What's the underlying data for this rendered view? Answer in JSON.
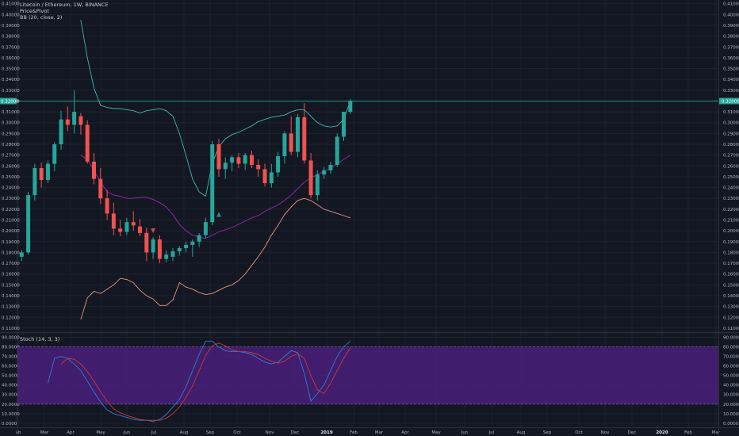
{
  "legend": {
    "symbol": "Litecoin / Ethereum, 1W, BINANCE",
    "indicator1": "Price&Pivot",
    "indicator2": "BB (20, close, 2)"
  },
  "stoch_legend": "Stoch (14, 3, 3)",
  "colors": {
    "background": "#131722",
    "grid": "#1e222d",
    "up": "#26a69a",
    "down": "#ef5350",
    "upper_band": "#3fb8af",
    "mid_band": "#9c27b0",
    "lower_band": "#e8947b",
    "stoch_k": "#2e7dd8",
    "stoch_d": "#c73a3a",
    "stoch_zone": "#4a1f7a",
    "price_line": "#26a69a"
  },
  "chart_data": [
    {
      "type": "candlestick",
      "title": "Litecoin / Ethereum, 1W, BINANCE",
      "ylim": [
        0.11,
        0.41
      ],
      "price_ticks": [
        "0.41000",
        "0.40000",
        "0.39000",
        "0.38000",
        "0.37000",
        "0.36000",
        "0.35000",
        "0.34000",
        "0.33000",
        "0.32000",
        "0.31000",
        "0.30000",
        "0.29000",
        "0.28000",
        "0.27000",
        "0.26000",
        "0.25000",
        "0.24000",
        "0.23000",
        "0.22000",
        "0.21000",
        "0.20000",
        "0.19000",
        "0.18000",
        "0.17000",
        "0.16000",
        "0.15000",
        "0.14000",
        "0.13000",
        "0.12000",
        "0.11000"
      ],
      "current_price": "0.32000",
      "candles": [
        [
          0.176,
          0.182,
          0.172,
          0.18
        ],
        [
          0.18,
          0.236,
          0.178,
          0.233
        ],
        [
          0.233,
          0.262,
          0.228,
          0.258
        ],
        [
          0.258,
          0.263,
          0.24,
          0.247
        ],
        [
          0.247,
          0.265,
          0.244,
          0.262
        ],
        [
          0.262,
          0.282,
          0.255,
          0.28
        ],
        [
          0.28,
          0.311,
          0.275,
          0.303
        ],
        [
          0.303,
          0.315,
          0.292,
          0.298
        ],
        [
          0.298,
          0.33,
          0.29,
          0.31
        ],
        [
          0.306,
          0.309,
          0.289,
          0.298
        ],
        [
          0.298,
          0.302,
          0.262,
          0.264
        ],
        [
          0.264,
          0.272,
          0.243,
          0.248
        ],
        [
          0.248,
          0.258,
          0.225,
          0.23
        ],
        [
          0.23,
          0.238,
          0.21,
          0.216
        ],
        [
          0.216,
          0.226,
          0.196,
          0.202
        ],
        [
          0.202,
          0.21,
          0.195,
          0.199
        ],
        [
          0.199,
          0.212,
          0.196,
          0.208
        ],
        [
          0.208,
          0.218,
          0.2,
          0.205
        ],
        [
          0.204,
          0.211,
          0.195,
          0.198
        ],
        [
          0.198,
          0.203,
          0.172,
          0.18
        ],
        [
          0.18,
          0.194,
          0.174,
          0.192
        ],
        [
          0.192,
          0.196,
          0.17,
          0.174
        ],
        [
          0.174,
          0.182,
          0.171,
          0.178
        ],
        [
          0.176,
          0.184,
          0.172,
          0.181
        ],
        [
          0.181,
          0.186,
          0.177,
          0.184
        ],
        [
          0.184,
          0.19,
          0.18,
          0.187
        ],
        [
          0.187,
          0.192,
          0.176,
          0.19
        ],
        [
          0.19,
          0.198,
          0.185,
          0.196
        ],
        [
          0.196,
          0.212,
          0.193,
          0.208
        ],
        [
          0.208,
          0.283,
          0.205,
          0.28
        ],
        [
          0.28,
          0.285,
          0.25,
          0.257
        ],
        [
          0.257,
          0.268,
          0.248,
          0.263
        ],
        [
          0.263,
          0.27,
          0.255,
          0.268
        ],
        [
          0.268,
          0.272,
          0.258,
          0.262
        ],
        [
          0.262,
          0.272,
          0.256,
          0.27
        ],
        [
          0.27,
          0.274,
          0.258,
          0.261
        ],
        [
          0.261,
          0.266,
          0.25,
          0.257
        ],
        [
          0.257,
          0.262,
          0.241,
          0.244
        ],
        [
          0.244,
          0.262,
          0.24,
          0.254
        ],
        [
          0.254,
          0.273,
          0.25,
          0.269
        ],
        [
          0.269,
          0.292,
          0.262,
          0.29
        ],
        [
          0.29,
          0.306,
          0.27,
          0.273
        ],
        [
          0.273,
          0.308,
          0.268,
          0.305
        ],
        [
          0.305,
          0.318,
          0.262,
          0.265
        ],
        [
          0.265,
          0.272,
          0.23,
          0.233
        ],
        [
          0.233,
          0.256,
          0.228,
          0.252
        ],
        [
          0.252,
          0.259,
          0.248,
          0.256
        ],
        [
          0.256,
          0.264,
          0.253,
          0.261
        ],
        [
          0.261,
          0.29,
          0.259,
          0.287
        ],
        [
          0.287,
          0.31,
          0.283,
          0.31
        ],
        [
          0.31,
          0.322,
          0.308,
          0.32
        ]
      ],
      "bb_upper": [
        null,
        null,
        null,
        null,
        null,
        null,
        null,
        null,
        null,
        0.395,
        0.36,
        0.332,
        0.316,
        0.314,
        0.313,
        0.313,
        0.312,
        0.311,
        0.309,
        0.311,
        0.312,
        0.313,
        0.311,
        0.306,
        0.29,
        0.27,
        0.248,
        0.236,
        0.232,
        0.262,
        0.278,
        0.285,
        0.289,
        0.291,
        0.294,
        0.297,
        0.301,
        0.303,
        0.305,
        0.306,
        0.307,
        0.31,
        0.312,
        0.312,
        0.306,
        0.3,
        0.297,
        0.296,
        0.297,
        0.303,
        0.32
      ],
      "bb_mid": [
        null,
        null,
        null,
        null,
        null,
        null,
        null,
        null,
        null,
        0.27,
        0.266,
        0.256,
        0.245,
        0.236,
        0.233,
        0.232,
        0.23,
        0.23,
        0.231,
        0.231,
        0.229,
        0.226,
        0.222,
        0.215,
        0.206,
        0.2,
        0.196,
        0.194,
        0.193,
        0.196,
        0.199,
        0.201,
        0.203,
        0.206,
        0.209,
        0.212,
        0.214,
        0.218,
        0.221,
        0.224,
        0.228,
        0.233,
        0.239,
        0.245,
        0.249,
        0.252,
        0.255,
        0.258,
        0.262,
        0.266,
        0.27
      ],
      "bb_lower": [
        null,
        null,
        null,
        null,
        null,
        null,
        null,
        null,
        null,
        0.118,
        0.138,
        0.144,
        0.142,
        0.146,
        0.15,
        0.156,
        0.155,
        0.152,
        0.145,
        0.14,
        0.137,
        0.131,
        0.131,
        0.136,
        0.152,
        0.148,
        0.146,
        0.143,
        0.141,
        0.142,
        0.145,
        0.148,
        0.15,
        0.154,
        0.16,
        0.168,
        0.176,
        0.185,
        0.196,
        0.205,
        0.215,
        0.222,
        0.228,
        0.23,
        0.228,
        0.224,
        0.22,
        0.218,
        0.216,
        0.214,
        0.212
      ],
      "pivot_markers": [
        {
          "index": 20,
          "dir": "down",
          "price": 0.2
        },
        {
          "index": 30,
          "dir": "up",
          "price": 0.215
        },
        {
          "index": 44,
          "dir": "down",
          "price": 0.262
        },
        {
          "index": 48,
          "dir": "up",
          "price": 0.279
        }
      ]
    },
    {
      "type": "line",
      "title": "Stoch (14, 3, 3)",
      "ylim": [
        0,
        90
      ],
      "ticks": [
        "90.0000",
        "80.0000",
        "70.0000",
        "60.0000",
        "50.0000",
        "40.0000",
        "30.0000",
        "20.0000",
        "10.0000",
        "0.0000"
      ],
      "zone": [
        20,
        80
      ],
      "k": [
        null,
        null,
        null,
        null,
        42,
        68,
        70,
        68,
        62,
        55,
        44,
        33,
        22,
        14,
        10,
        8,
        6,
        4,
        3,
        3,
        2,
        4,
        9,
        17,
        25,
        38,
        55,
        72,
        86,
        86,
        80,
        76,
        75,
        75,
        74,
        72,
        68,
        64,
        62,
        64,
        70,
        76,
        74,
        52,
        23,
        31,
        40,
        55,
        70,
        80,
        86
      ],
      "d": [
        null,
        null,
        null,
        null,
        null,
        null,
        62,
        68,
        67,
        62,
        54,
        44,
        33,
        23,
        15,
        11,
        8,
        6,
        4,
        3,
        3,
        3,
        5,
        10,
        17,
        27,
        39,
        55,
        71,
        81,
        84,
        81,
        77,
        75,
        75,
        74,
        72,
        68,
        65,
        63,
        65,
        70,
        73,
        68,
        50,
        35,
        31,
        42,
        55,
        68,
        79
      ]
    }
  ],
  "x_axis": [
    {
      "label": "ab",
      "bold": false
    },
    {
      "label": "Mar",
      "bold": false
    },
    {
      "label": "Apr",
      "bold": false
    },
    {
      "label": "May",
      "bold": false
    },
    {
      "label": "Jun",
      "bold": false
    },
    {
      "label": "Jul",
      "bold": false
    },
    {
      "label": "Aug",
      "bold": false
    },
    {
      "label": "Sep",
      "bold": false
    },
    {
      "label": "Oct",
      "bold": false
    },
    {
      "label": "Nov",
      "bold": false
    },
    {
      "label": "Dec",
      "bold": false
    },
    {
      "label": "2019",
      "bold": true
    },
    {
      "label": "Feb",
      "bold": false
    },
    {
      "label": "Mar",
      "bold": false
    },
    {
      "label": "Apr",
      "bold": false
    },
    {
      "label": "May",
      "bold": false
    },
    {
      "label": "Jun",
      "bold": false
    },
    {
      "label": "Jul",
      "bold": false
    },
    {
      "label": "Aug",
      "bold": false
    },
    {
      "label": "Sep",
      "bold": false
    },
    {
      "label": "Oct",
      "bold": false
    },
    {
      "label": "Nov",
      "bold": false
    },
    {
      "label": "Dec",
      "bold": false
    },
    {
      "label": "2020",
      "bold": true
    },
    {
      "label": "Feb",
      "bold": false
    },
    {
      "label": "Mar",
      "bold": false
    }
  ]
}
